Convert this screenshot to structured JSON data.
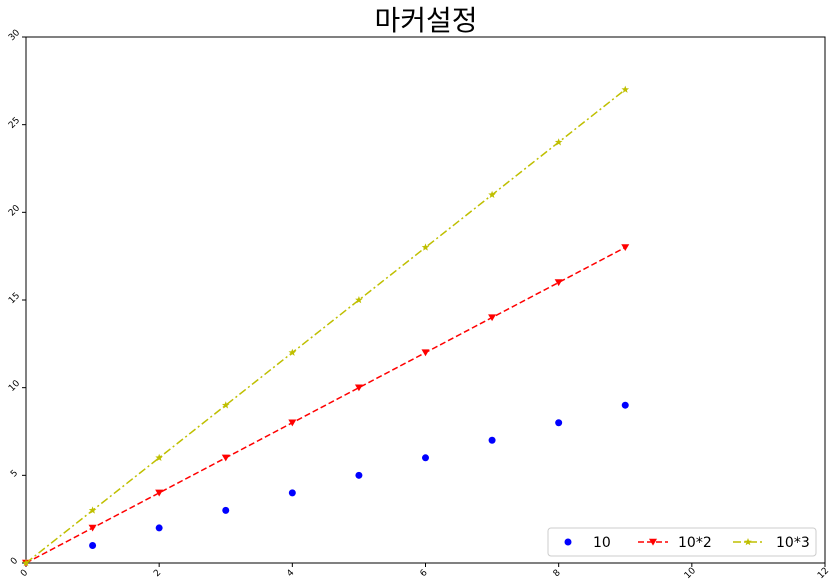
{
  "chart_data": {
    "type": "line",
    "title": "마커설정",
    "xlabel": "",
    "ylabel": "",
    "xlim": [
      0,
      12
    ],
    "ylim": [
      0,
      30
    ],
    "x_ticks": [
      0,
      2,
      4,
      6,
      8,
      10,
      12
    ],
    "y_ticks": [
      0,
      5,
      10,
      15,
      20,
      25,
      30
    ],
    "grid": false,
    "legend_placement": "lower-right",
    "series": [
      {
        "name": "10",
        "x": [
          1,
          2,
          3,
          4,
          5,
          6,
          7,
          8,
          9
        ],
        "y": [
          1,
          2,
          3,
          4,
          5,
          6,
          7,
          8,
          9
        ],
        "color": "#0000ff",
        "marker": "circle",
        "line": "none"
      },
      {
        "name": "10*2",
        "x": [
          0,
          1,
          2,
          3,
          4,
          5,
          6,
          7,
          8,
          9
        ],
        "y": [
          0,
          2,
          4,
          6,
          8,
          10,
          12,
          14,
          16,
          18
        ],
        "color": "#ff0000",
        "marker": "triangle-down",
        "line": "dashed"
      },
      {
        "name": "10*3",
        "x": [
          0,
          1,
          2,
          3,
          4,
          5,
          6,
          7,
          8,
          9
        ],
        "y": [
          0,
          3,
          6,
          9,
          12,
          15,
          18,
          21,
          24,
          27
        ],
        "color": "#bfbf00",
        "marker": "star",
        "line": "dashdot"
      }
    ]
  }
}
